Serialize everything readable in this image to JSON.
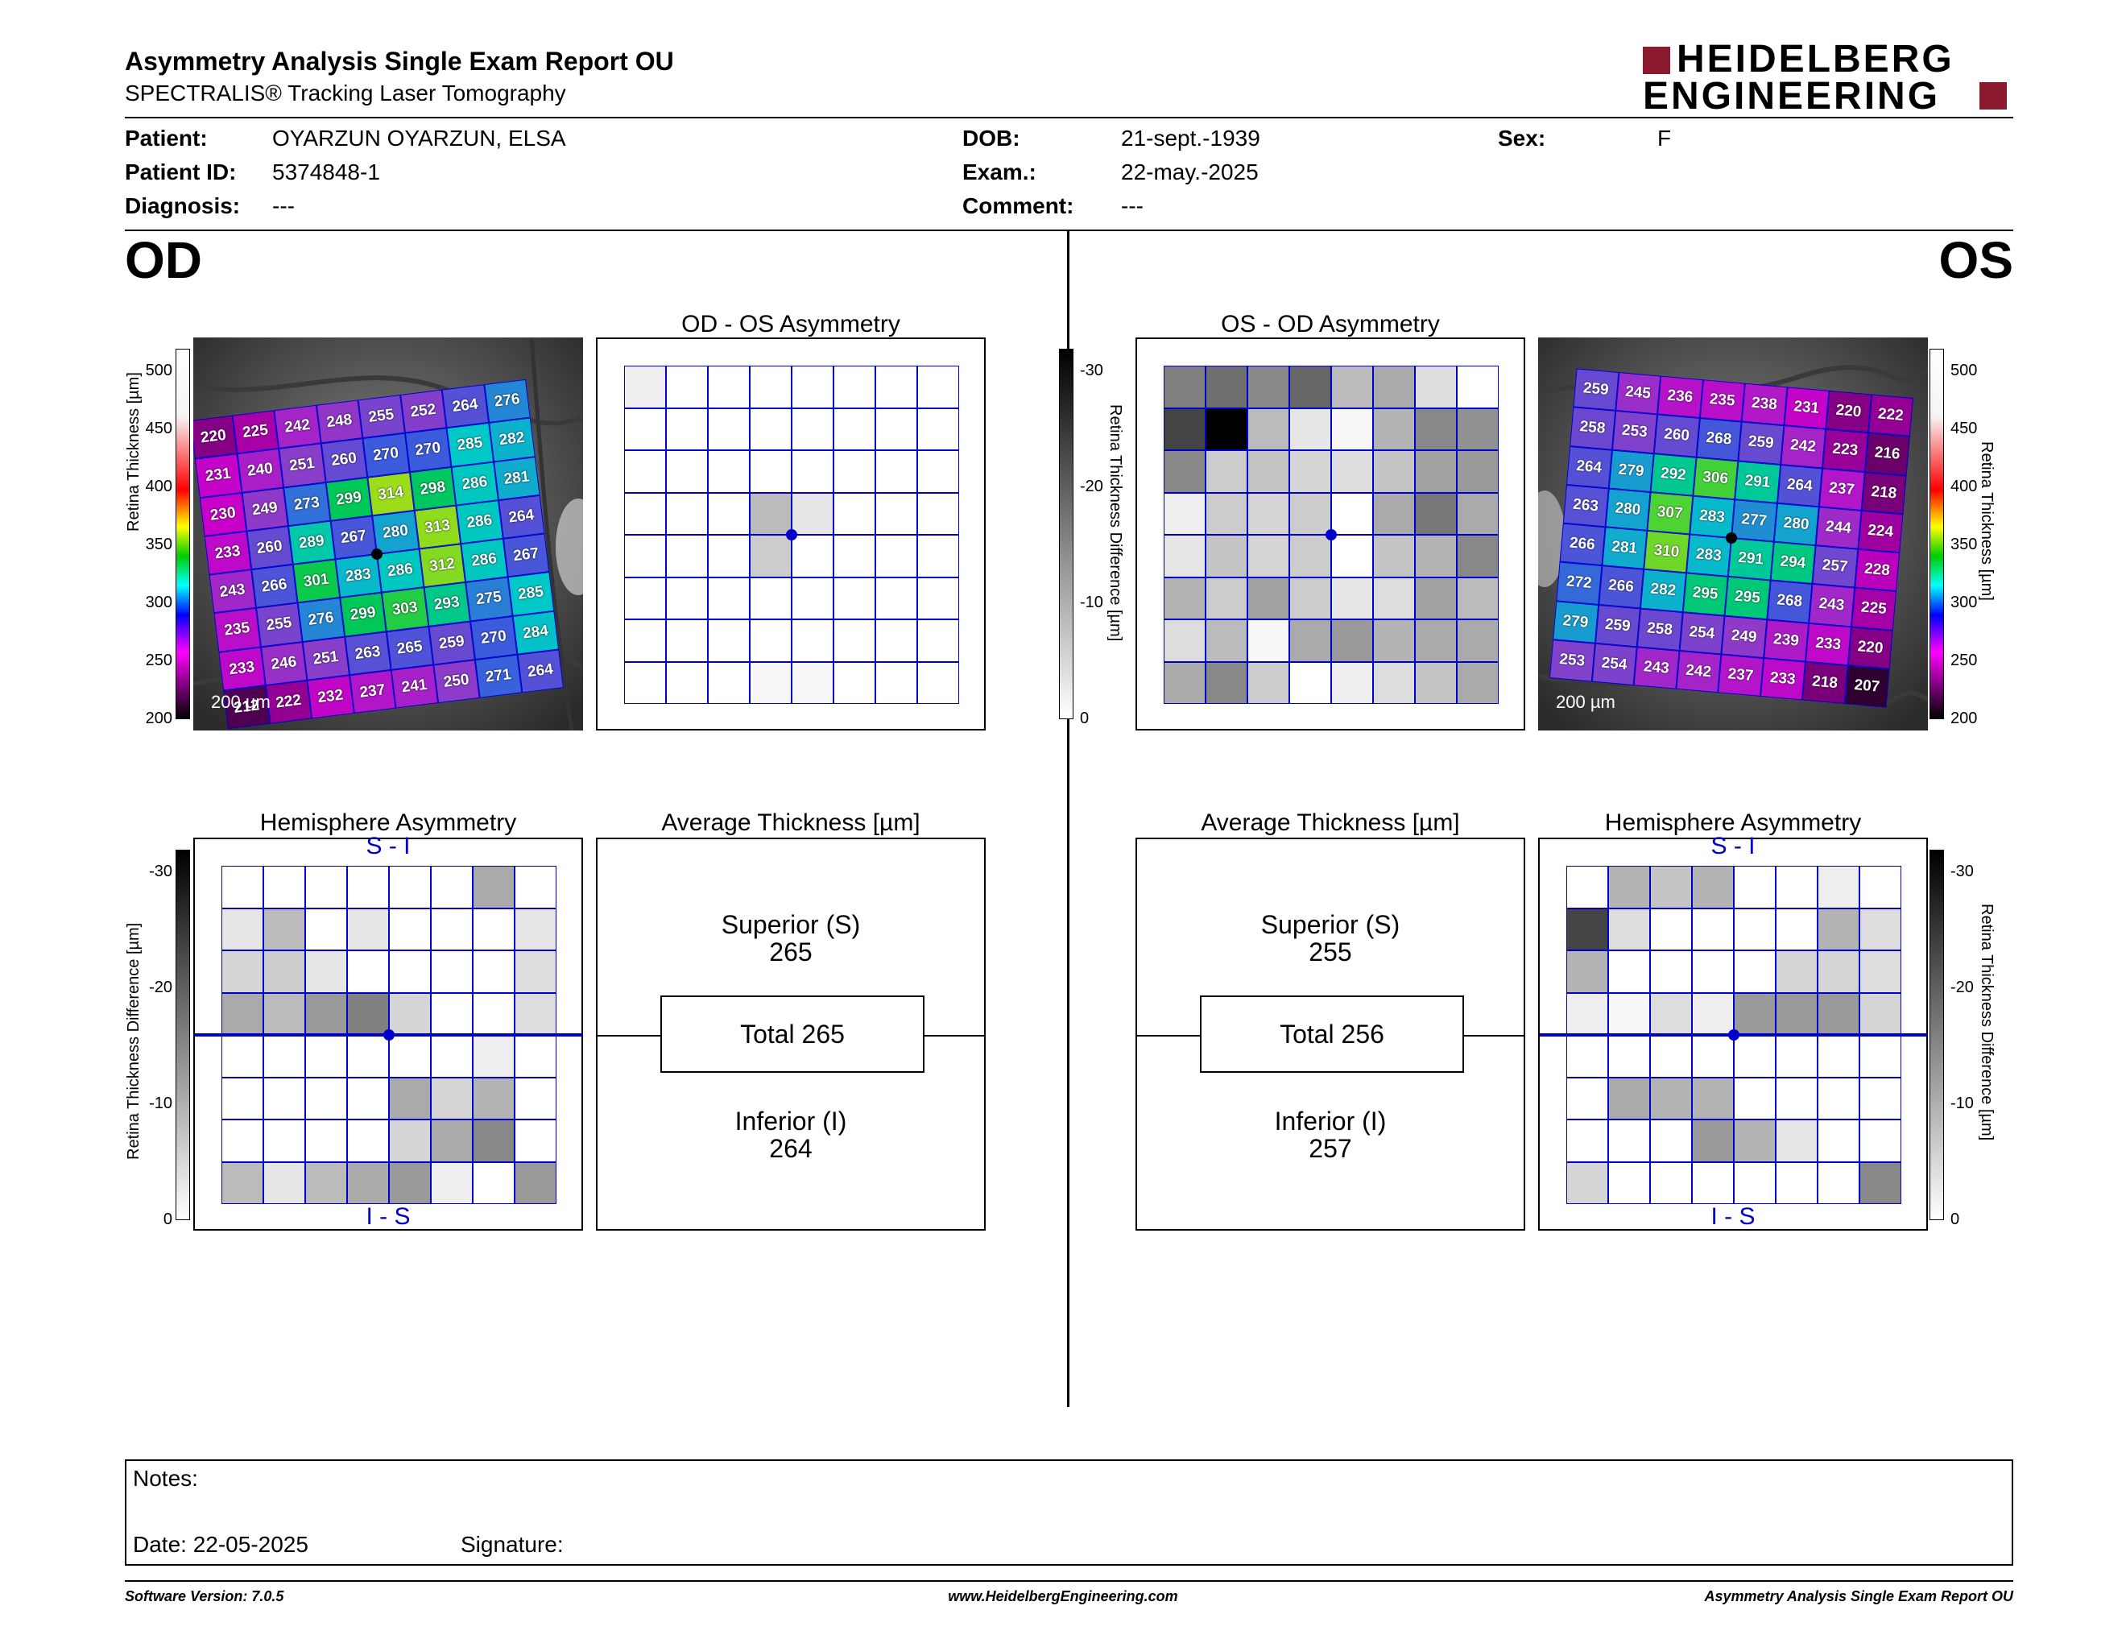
{
  "header": {
    "title": "Asymmetry Analysis Single Exam Report OU",
    "subtitle": "SPECTRALIS® Tracking Laser Tomography",
    "logo_line1": "HEIDELBERG",
    "logo_line2": "ENGINEERING"
  },
  "patient": {
    "patient_label": "Patient:",
    "patient_value": "OYARZUN OYARZUN, ELSA",
    "id_label": "Patient ID:",
    "id_value": "5374848-1",
    "diagnosis_label": "Diagnosis:",
    "diagnosis_value": "---",
    "dob_label": "DOB:",
    "dob_value": "21-sept.-1939",
    "exam_label": "Exam.:",
    "exam_value": "22-may.-2025",
    "comment_label": "Comment:",
    "comment_value": "---",
    "sex_label": "Sex:",
    "sex_value": "F"
  },
  "eyes": {
    "od": "OD",
    "os": "OS"
  },
  "thickness_scale": {
    "label": "Retina Thickness [µm]",
    "ticks": [
      "500",
      "450",
      "400",
      "350",
      "300",
      "250",
      "200"
    ]
  },
  "difference_scale": {
    "label": "Retina Thickness Difference [µm]",
    "ticks": [
      "-30",
      "-20",
      "-10",
      "0"
    ]
  },
  "od_map": {
    "scale_bar": "200 µm",
    "grid": [
      [
        220,
        225,
        242,
        248,
        255,
        252,
        264,
        276
      ],
      [
        231,
        240,
        251,
        260,
        270,
        270,
        285,
        282
      ],
      [
        230,
        249,
        273,
        299,
        314,
        298,
        286,
        281
      ],
      [
        233,
        260,
        289,
        267,
        280,
        313,
        286,
        264
      ],
      [
        243,
        266,
        301,
        283,
        286,
        312,
        286,
        267
      ],
      [
        235,
        255,
        276,
        299,
        303,
        293,
        275,
        285
      ],
      [
        233,
        246,
        251,
        263,
        265,
        259,
        270,
        284
      ],
      [
        212,
        222,
        232,
        237,
        241,
        250,
        271,
        264
      ]
    ]
  },
  "os_map": {
    "scale_bar": "200 µm",
    "grid": [
      [
        259,
        245,
        236,
        235,
        238,
        231,
        220,
        222
      ],
      [
        258,
        253,
        260,
        268,
        259,
        242,
        223,
        216
      ],
      [
        264,
        279,
        292,
        306,
        291,
        264,
        237,
        218
      ],
      [
        263,
        280,
        307,
        283,
        277,
        280,
        244,
        224
      ],
      [
        266,
        281,
        310,
        283,
        291,
        294,
        257,
        228
      ],
      [
        272,
        266,
        282,
        295,
        295,
        268,
        243,
        225
      ],
      [
        279,
        259,
        258,
        254,
        249,
        239,
        233,
        220
      ],
      [
        253,
        254,
        243,
        242,
        237,
        233,
        218,
        207
      ]
    ]
  },
  "od_os_asymmetry": {
    "title": "OD - OS Asymmetry",
    "grid": [
      [
        2,
        0,
        0,
        0,
        0,
        0,
        0,
        0
      ],
      [
        0,
        0,
        0,
        0,
        0,
        0,
        0,
        0
      ],
      [
        0,
        0,
        0,
        0,
        0,
        0,
        0,
        0
      ],
      [
        0,
        0,
        0,
        8,
        3,
        0,
        0,
        0
      ],
      [
        0,
        0,
        0,
        6,
        0,
        0,
        0,
        0
      ],
      [
        0,
        0,
        0,
        0,
        0,
        0,
        0,
        0
      ],
      [
        0,
        0,
        0,
        0,
        0,
        0,
        0,
        0
      ],
      [
        0,
        0,
        0,
        1,
        1,
        0,
        0,
        0
      ]
    ]
  },
  "os_od_asymmetry": {
    "title": "OS - OD Asymmetry",
    "grid": [
      [
        15,
        17,
        14,
        18,
        8,
        10,
        4,
        0
      ],
      [
        22,
        30,
        8,
        3,
        1,
        9,
        14,
        13
      ],
      [
        14,
        6,
        7,
        5,
        4,
        7,
        11,
        12
      ],
      [
        2,
        6,
        5,
        6,
        0,
        10,
        16,
        10
      ],
      [
        3,
        7,
        5,
        6,
        0,
        7,
        9,
        14
      ],
      [
        9,
        6,
        11,
        6,
        3,
        4,
        11,
        8
      ],
      [
        4,
        8,
        1,
        10,
        12,
        9,
        10,
        10
      ],
      [
        10,
        14,
        6,
        0,
        2,
        4,
        7,
        10
      ]
    ]
  },
  "od_hemisphere": {
    "title": "Hemisphere Asymmetry",
    "top_label": "S - I",
    "bottom_label": "I - S",
    "grid": [
      [
        0,
        0,
        0,
        0,
        0,
        0,
        10,
        0
      ],
      [
        3,
        8,
        0,
        3,
        0,
        0,
        0,
        3
      ],
      [
        5,
        6,
        3,
        0,
        0,
        0,
        0,
        4
      ],
      [
        10,
        8,
        12,
        15,
        5,
        0,
        0,
        4
      ],
      [
        0,
        0,
        0,
        0,
        0,
        0,
        2,
        0
      ],
      [
        0,
        0,
        0,
        0,
        10,
        5,
        9,
        0
      ],
      [
        0,
        0,
        0,
        0,
        5,
        10,
        14,
        0
      ],
      [
        8,
        3,
        8,
        10,
        12,
        2,
        0,
        12
      ]
    ]
  },
  "os_hemisphere": {
    "title": "Hemisphere Asymmetry",
    "top_label": "S - I",
    "bottom_label": "I - S",
    "grid": [
      [
        0,
        9,
        7,
        9,
        0,
        0,
        2,
        0
      ],
      [
        22,
        4,
        0,
        0,
        0,
        0,
        9,
        4
      ],
      [
        9,
        0,
        0,
        0,
        0,
        5,
        5,
        4
      ],
      [
        2,
        1,
        4,
        2,
        12,
        12,
        12,
        5
      ],
      [
        0,
        0,
        0,
        0,
        0,
        0,
        0,
        0
      ],
      [
        0,
        10,
        9,
        9,
        0,
        0,
        0,
        0
      ],
      [
        0,
        0,
        0,
        12,
        9,
        3,
        0,
        0
      ],
      [
        5,
        0,
        0,
        0,
        0,
        0,
        0,
        14
      ]
    ]
  },
  "od_average": {
    "title": "Average Thickness [µm]",
    "superior_label": "Superior (S)",
    "superior_value": "265",
    "total": "Total 265",
    "inferior_label": "Inferior (I)",
    "inferior_value": "264"
  },
  "os_average": {
    "title": "Average Thickness [µm]",
    "superior_label": "Superior (S)",
    "superior_value": "255",
    "total": "Total 256",
    "inferior_label": "Inferior (I)",
    "inferior_value": "257"
  },
  "notes": {
    "notes_label": "Notes:",
    "date_label": "Date: 22-05-2025",
    "signature_label": "Signature:"
  },
  "footer": {
    "software": "Software Version: 7.0.5",
    "website": "www.HeidelbergEngineering.com",
    "report_name": "Asymmetry Analysis Single Exam Report OU"
  },
  "colors": {
    "grid_blue": "#0000cc",
    "brand_red": "#8b1a2e"
  }
}
